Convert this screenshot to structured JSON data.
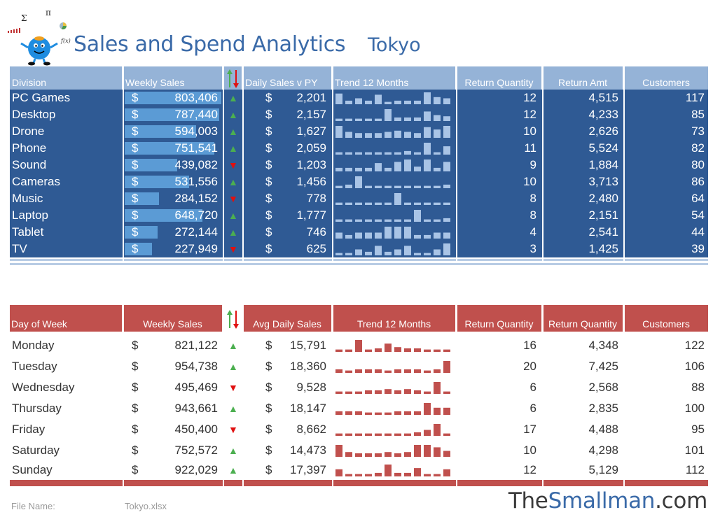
{
  "header": {
    "title": "Sales and Spend Analytics",
    "city": "Tokyo",
    "logo_symbols": {
      "sigma": "Σ",
      "pi": "π",
      "fx": "f(x)"
    }
  },
  "colors": {
    "title": "#3a6aa8",
    "blue_header": "#95b3d7",
    "blue_body": "#2f5a94",
    "blue_bar": "#5b9bd5",
    "spark_blue": "#a9c4e6",
    "red_header": "#c0504d",
    "spark_red": "#c0504d",
    "up": "#4caf50",
    "down": "#e01010"
  },
  "division_table": {
    "headers": [
      "Division",
      "Weekly Sales",
      "",
      "Daily Sales v PY",
      "Trend 12 Months",
      "Return Quantity",
      "Return Amt",
      "Customers"
    ],
    "currency": "$",
    "rows": [
      {
        "name": "PC Games",
        "weekly": "803,406",
        "weekly_fraction": 0.98,
        "trend": "up",
        "daily": "2,201",
        "spark": [
          0.9,
          0.3,
          0.5,
          0.3,
          0.8,
          0.2,
          0.3,
          0.3,
          0.3,
          1.0,
          0.6,
          0.5
        ],
        "ret_qty": "12",
        "ret_amt": "4,515",
        "customers": "117"
      },
      {
        "name": "Desktop",
        "weekly": "787,440",
        "weekly_fraction": 0.96,
        "trend": "up",
        "daily": "2,157",
        "spark": [
          0.2,
          0.2,
          0.2,
          0.2,
          0.2,
          1.0,
          0.3,
          0.3,
          0.3,
          0.8,
          0.5,
          0.4
        ],
        "ret_qty": "12",
        "ret_amt": "4,233",
        "customers": "85"
      },
      {
        "name": "Drone",
        "weekly": "594,003",
        "weekly_fraction": 0.72,
        "trend": "up",
        "daily": "1,627",
        "spark": [
          1.0,
          0.5,
          0.4,
          0.4,
          0.4,
          0.5,
          0.6,
          0.5,
          0.4,
          0.9,
          0.7,
          1.0
        ],
        "ret_qty": "10",
        "ret_amt": "2,626",
        "customers": "73"
      },
      {
        "name": "Phone",
        "weekly": "751,541",
        "weekly_fraction": 0.91,
        "trend": "up",
        "daily": "2,059",
        "spark": [
          0.2,
          0.2,
          0.2,
          0.2,
          0.2,
          0.2,
          0.2,
          0.3,
          0.2,
          1.0,
          0.2,
          0.7
        ],
        "ret_qty": "11",
        "ret_amt": "5,524",
        "customers": "82"
      },
      {
        "name": "Sound",
        "weekly": "439,082",
        "weekly_fraction": 0.53,
        "trend": "down",
        "daily": "1,203",
        "spark": [
          0.3,
          0.3,
          0.3,
          0.3,
          0.7,
          0.3,
          0.8,
          1.0,
          0.4,
          1.0,
          0.3,
          0.8
        ],
        "ret_qty": "9",
        "ret_amt": "1,884",
        "customers": "80"
      },
      {
        "name": "Cameras",
        "weekly": "531,556",
        "weekly_fraction": 0.65,
        "trend": "up",
        "daily": "1,456",
        "spark": [
          0.2,
          0.3,
          1.0,
          0.2,
          0.2,
          0.2,
          0.2,
          0.2,
          0.2,
          0.2,
          0.2,
          0.3
        ],
        "ret_qty": "10",
        "ret_amt": "3,713",
        "customers": "86"
      },
      {
        "name": "Music",
        "weekly": "284,152",
        "weekly_fraction": 0.35,
        "trend": "down",
        "daily": "778",
        "spark": [
          0.2,
          0.2,
          0.2,
          0.2,
          0.2,
          0.2,
          1.0,
          0.2,
          0.2,
          0.2,
          0.2,
          0.2
        ],
        "ret_qty": "8",
        "ret_amt": "2,480",
        "customers": "64"
      },
      {
        "name": "Laptop",
        "weekly": "648,720",
        "weekly_fraction": 0.79,
        "trend": "up",
        "daily": "1,777",
        "spark": [
          0.2,
          0.2,
          0.2,
          0.2,
          0.2,
          0.2,
          0.2,
          0.2,
          1.0,
          0.2,
          0.2,
          0.3
        ],
        "ret_qty": "8",
        "ret_amt": "2,151",
        "customers": "54"
      },
      {
        "name": "Tablet",
        "weekly": "272,144",
        "weekly_fraction": 0.33,
        "trend": "up",
        "daily": "746",
        "spark": [
          0.5,
          0.3,
          0.5,
          0.5,
          0.5,
          1.0,
          1.0,
          1.0,
          0.3,
          0.3,
          0.5,
          0.5
        ],
        "ret_qty": "4",
        "ret_amt": "2,541",
        "customers": "44"
      },
      {
        "name": "TV",
        "weekly": "227,949",
        "weekly_fraction": 0.28,
        "trend": "down",
        "daily": "625",
        "spark": [
          0.2,
          0.2,
          0.5,
          0.3,
          0.8,
          0.3,
          0.5,
          0.8,
          0.2,
          0.2,
          0.5,
          1.0
        ],
        "ret_qty": "3",
        "ret_amt": "1,425",
        "customers": "39"
      }
    ]
  },
  "day_table": {
    "headers": [
      "Day of Week",
      "Weekly Sales",
      "",
      "Avg Daily Sales",
      "Trend 12 Months",
      "Return Quantity",
      "Return Quantity",
      "Customers"
    ],
    "currency": "$",
    "rows": [
      {
        "name": "Monday",
        "weekly": "821,122",
        "trend": "up",
        "daily": "15,791",
        "spark": [
          0.2,
          0.2,
          1.0,
          0.2,
          0.3,
          0.7,
          0.4,
          0.3,
          0.3,
          0.2,
          0.2,
          0.2
        ],
        "ret_qty": "16",
        "ret_amt": "4,348",
        "customers": "122"
      },
      {
        "name": "Tuesday",
        "weekly": "954,738",
        "trend": "up",
        "daily": "18,360",
        "spark": [
          0.3,
          0.2,
          0.3,
          0.3,
          0.3,
          0.2,
          0.3,
          0.3,
          0.3,
          0.2,
          0.3,
          1.0
        ],
        "ret_qty": "20",
        "ret_amt": "7,425",
        "customers": "106"
      },
      {
        "name": "Wednesday",
        "weekly": "495,469",
        "trend": "down",
        "daily": "9,528",
        "spark": [
          0.2,
          0.2,
          0.2,
          0.3,
          0.3,
          0.4,
          0.3,
          0.4,
          0.3,
          0.2,
          1.0,
          0.2
        ],
        "ret_qty": "6",
        "ret_amt": "2,568",
        "customers": "88"
      },
      {
        "name": "Thursday",
        "weekly": "943,661",
        "trend": "up",
        "daily": "18,147",
        "spark": [
          0.3,
          0.3,
          0.3,
          0.2,
          0.2,
          0.2,
          0.3,
          0.3,
          0.3,
          1.0,
          0.6,
          0.6
        ],
        "ret_qty": "6",
        "ret_amt": "2,835",
        "customers": "100"
      },
      {
        "name": "Friday",
        "weekly": "450,400",
        "trend": "down",
        "daily": "8,662",
        "spark": [
          0.2,
          0.2,
          0.2,
          0.2,
          0.2,
          0.2,
          0.2,
          0.2,
          0.3,
          0.5,
          1.0,
          0.2
        ],
        "ret_qty": "17",
        "ret_amt": "4,488",
        "customers": "95"
      },
      {
        "name": "Saturday",
        "weekly": "752,572",
        "trend": "up",
        "daily": "14,473",
        "spark": [
          1.0,
          0.4,
          0.3,
          0.3,
          0.3,
          0.4,
          0.3,
          0.4,
          1.0,
          1.0,
          0.8,
          0.5
        ],
        "ret_qty": "10",
        "ret_amt": "4,298",
        "customers": "101"
      },
      {
        "name": "Sunday",
        "weekly": "922,029",
        "trend": "up",
        "daily": "17,397",
        "spark": [
          0.6,
          0.2,
          0.2,
          0.2,
          0.3,
          1.0,
          0.3,
          0.3,
          0.7,
          0.2,
          0.2,
          0.6
        ],
        "ret_qty": "12",
        "ret_amt": "5,129",
        "customers": "112"
      }
    ]
  },
  "footer": {
    "file_label": "File Name:",
    "file_name": "Tokyo.xlsx",
    "brand_a": "The",
    "brand_b": "Smallman",
    "brand_c": ".com"
  }
}
